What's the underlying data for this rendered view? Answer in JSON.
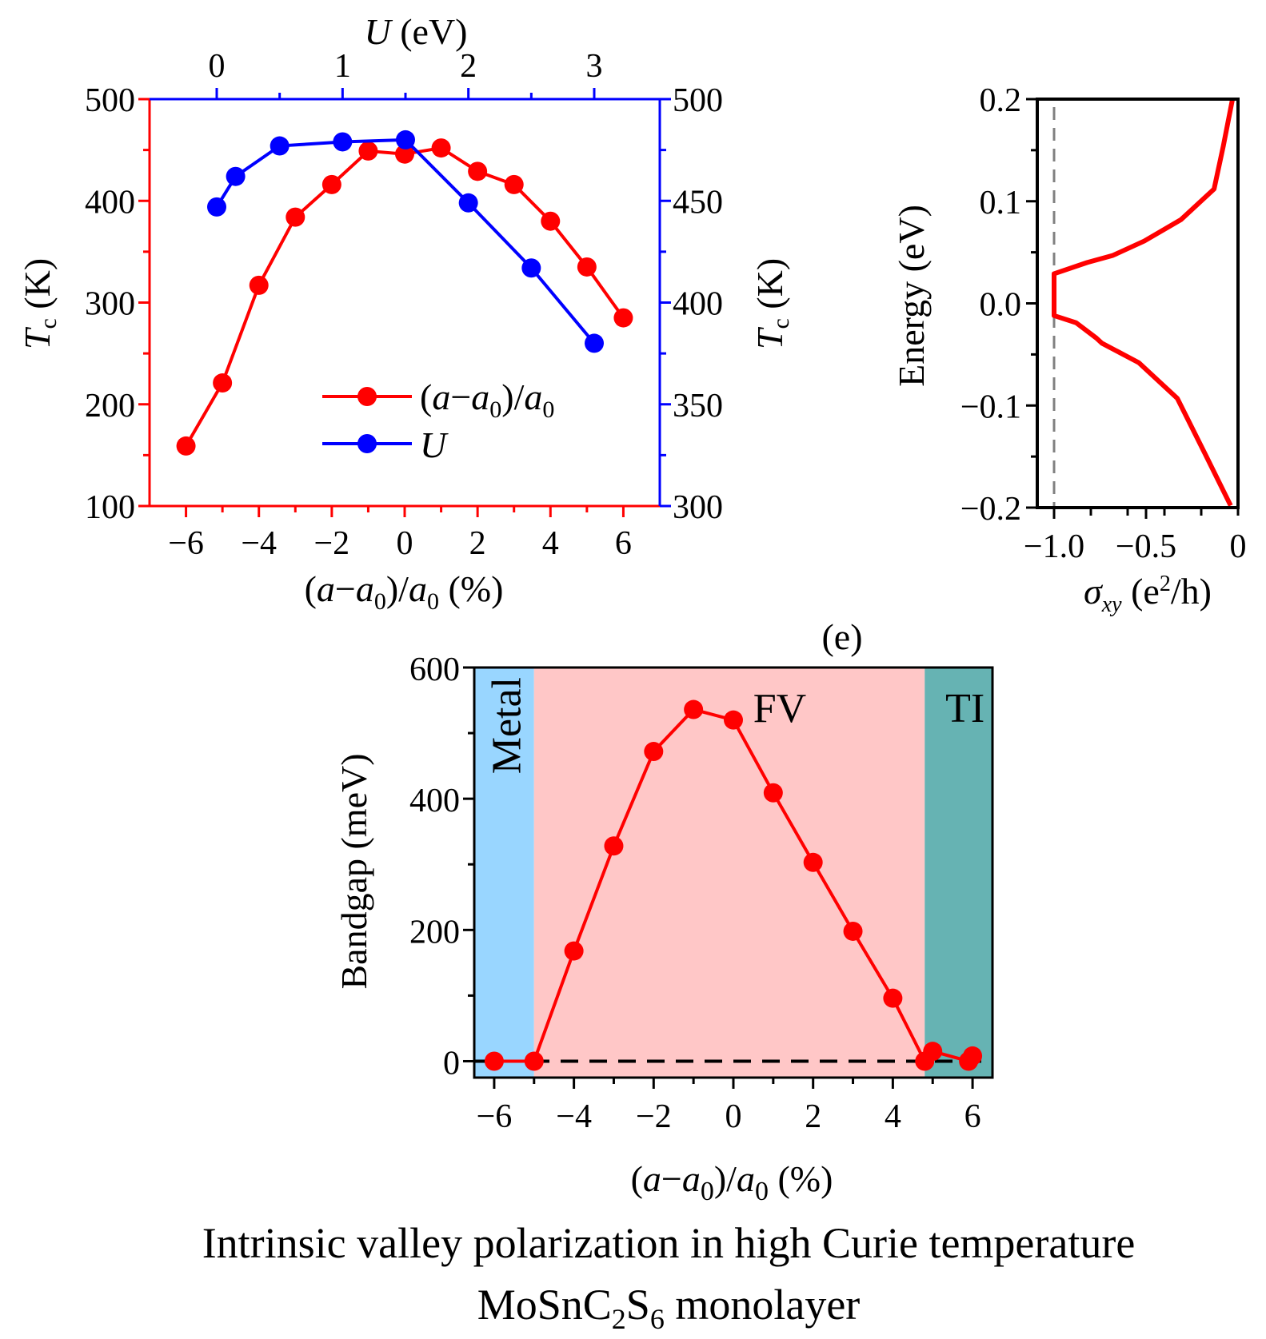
{
  "chart_data": [
    {
      "type": "line",
      "panel": "Tc vs strain and U",
      "title": "",
      "xlabel": "(a−a₀)/a₀ (%)",
      "xlabel_parts": {
        "pre": "(",
        "a1": "a",
        "minus": "−",
        "a2": "a",
        "sub": "0",
        "slash": ")/",
        "a3": "a",
        "sub2": "0",
        "post": " (%)"
      },
      "x_top_label": {
        "var": "U",
        "unit": " (eV)"
      },
      "ylabel_left": {
        "var": "T",
        "sub": "c",
        "unit": " (K)"
      },
      "ylabel_right": {
        "var": "T",
        "sub": "c",
        "unit": " (K)"
      },
      "xlim": [
        -7,
        7
      ],
      "x_ticks": [
        "−6",
        "−4",
        "−2",
        "0",
        "2",
        "4",
        "6"
      ],
      "x_tick_values": [
        -6,
        -4,
        -2,
        0,
        2,
        4,
        6
      ],
      "x_top_lim": [
        -0.5,
        3.5
      ],
      "x_top_ticks": [
        "0",
        "1",
        "2",
        "3"
      ],
      "x_top_tick_values": [
        0,
        1,
        2,
        3
      ],
      "ylim_left": [
        100,
        500
      ],
      "y_left_ticks": [
        "100",
        "200",
        "300",
        "400",
        "500"
      ],
      "y_left_tick_values": [
        100,
        200,
        300,
        400,
        500
      ],
      "ylim_right": [
        300,
        500
      ],
      "y_right_ticks": [
        "300",
        "350",
        "400",
        "450",
        "500"
      ],
      "y_right_tick_values": [
        300,
        350,
        400,
        450,
        500
      ],
      "legend_position": "lower-center",
      "series": [
        {
          "name": "(a−a₀)/a₀",
          "legend_parts": {
            "pre": "(",
            "a1": "a",
            "minus": "−",
            "a2": "a",
            "sub": "0",
            "slash": ")/",
            "a3": "a",
            "sub2": "0"
          },
          "axis": "bottom-left",
          "color": "#ff0000",
          "x": [
            -6,
            -5,
            -4,
            -3,
            -2,
            -1,
            0,
            1,
            2,
            3,
            4,
            5,
            6
          ],
          "y": [
            159,
            221,
            317,
            384,
            416,
            449,
            446,
            452,
            429,
            416,
            380,
            335,
            285
          ]
        },
        {
          "name": "U",
          "axis": "top-right",
          "color": "#0000ff",
          "x": [
            0,
            0.15,
            0.5,
            1.0,
            1.5,
            2.0,
            2.5,
            3.0
          ],
          "y": [
            447,
            462,
            477,
            479,
            480,
            449,
            417,
            380
          ]
        }
      ]
    },
    {
      "type": "line",
      "panel": "Hall conductivity",
      "xlabel_parts": {
        "sigma": "σ",
        "sub": "xy",
        "unit_pre": " (e",
        "sup": "2",
        "unit_post": "/h)"
      },
      "ylabel": "Energy (eV)",
      "xlim": [
        -1.09,
        0.01
      ],
      "x_ticks": [
        "−1.0",
        "−0.5",
        "0"
      ],
      "x_tick_values": [
        -1.0,
        -0.5,
        0
      ],
      "ylim": [
        -0.2,
        0.2
      ],
      "y_ticks": [
        "−0.2",
        "−0.1",
        "0.0",
        "0.1",
        "0.2"
      ],
      "y_tick_values": [
        -0.2,
        -0.1,
        0.0,
        0.1,
        0.2
      ],
      "reference_line": {
        "x": -1.0,
        "style": "dashed",
        "color": "#808080"
      },
      "series": [
        {
          "name": "sigma_xy",
          "color": "#ff0000",
          "x": [
            -0.04,
            -0.18,
            -0.33,
            -0.54,
            -0.74,
            -0.77,
            -0.88,
            -1.0,
            -1.0,
            -0.82,
            -0.68,
            -0.51,
            -0.31,
            -0.13,
            -0.08,
            -0.03
          ],
          "y": [
            -0.198,
            -0.147,
            -0.093,
            -0.058,
            -0.039,
            -0.034,
            -0.019,
            -0.012,
            0.029,
            0.04,
            0.047,
            0.061,
            0.082,
            0.112,
            0.154,
            0.2
          ]
        }
      ]
    },
    {
      "type": "line",
      "panel_label": "(e)",
      "ylabel": "Bandgap (meV)",
      "xlabel_parts": {
        "pre": "(",
        "a1": "a",
        "minus": "−",
        "a2": "a",
        "sub": "0",
        "slash": ")/",
        "a3": "a",
        "sub2": "0",
        "post": " (%)"
      },
      "xlim": [
        -6.5,
        6.5
      ],
      "x_ticks": [
        "−6",
        "−4",
        "−2",
        "0",
        "2",
        "4",
        "6"
      ],
      "x_tick_values": [
        -6,
        -4,
        -2,
        0,
        2,
        4,
        6
      ],
      "ylim": [
        -25,
        600
      ],
      "y_ticks": [
        "0",
        "200",
        "400",
        "600"
      ],
      "y_tick_values": [
        0,
        200,
        400,
        600
      ],
      "reference_line": {
        "y": 0,
        "style": "dashed",
        "color": "#000000"
      },
      "regions": [
        {
          "label": "Metal",
          "from": -6.5,
          "to": -5.0,
          "color": "#99d6ff",
          "label_orientation": "vertical"
        },
        {
          "label": "FV",
          "from": -5.0,
          "to": 4.8,
          "color": "#ffc7c7",
          "label_orientation": "horizontal"
        },
        {
          "label": "TI",
          "from": 4.8,
          "to": 6.5,
          "color": "#66b3b3",
          "label_orientation": "horizontal"
        }
      ],
      "series": [
        {
          "name": "Bandgap",
          "color": "#ff0000",
          "x": [
            -6,
            -5,
            -4,
            -3,
            -2,
            -1,
            0,
            1,
            2,
            3,
            4,
            4.8,
            5.0,
            5.9,
            6.0
          ],
          "y": [
            0,
            0,
            168,
            328,
            472,
            536,
            520,
            409,
            303,
            198,
            96,
            0,
            15,
            0,
            8
          ]
        }
      ]
    }
  ],
  "caption": {
    "line1": "Intrinsic valley polarization in high Curie temperature",
    "line2_parts": {
      "a": "MoSnC",
      "sub1": "2",
      "b": "S",
      "sub2": "6",
      "c": " monolayer"
    }
  }
}
